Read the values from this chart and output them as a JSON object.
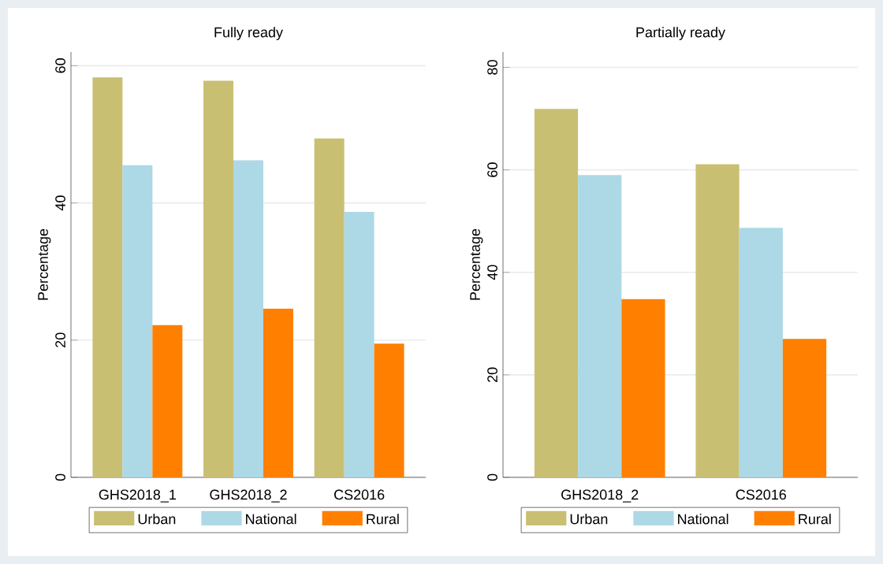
{
  "chart_data": [
    {
      "type": "bar",
      "title": "Fully ready",
      "ylabel": "Percentage",
      "categories": [
        "GHS2018_1",
        "GHS2018_2",
        "CS2016"
      ],
      "series": [
        {
          "name": "Urban",
          "color": "#c9bf73",
          "values": [
            58.3,
            57.8,
            49.4
          ]
        },
        {
          "name": "National",
          "color": "#add8e6",
          "values": [
            45.5,
            46.2,
            38.7
          ]
        },
        {
          "name": "Rural",
          "color": "#ff7f00",
          "values": [
            22.2,
            24.6,
            19.5
          ]
        }
      ],
      "ylim": [
        0,
        62
      ],
      "yticks": [
        0,
        20,
        40,
        60
      ],
      "grid": "y",
      "legend": "bottom"
    },
    {
      "type": "bar",
      "title": "Partially ready",
      "ylabel": "Percentage",
      "categories": [
        "GHS2018_2",
        "CS2016"
      ],
      "series": [
        {
          "name": "Urban",
          "color": "#c9bf73",
          "values": [
            71.9,
            61.1
          ]
        },
        {
          "name": "National",
          "color": "#add8e6",
          "values": [
            59.0,
            48.7
          ]
        },
        {
          "name": "Rural",
          "color": "#ff7f00",
          "values": [
            34.8,
            27.0
          ]
        }
      ],
      "ylim": [
        0,
        83
      ],
      "yticks": [
        0,
        20,
        40,
        60,
        80
      ],
      "grid": "y",
      "legend": "bottom"
    }
  ]
}
